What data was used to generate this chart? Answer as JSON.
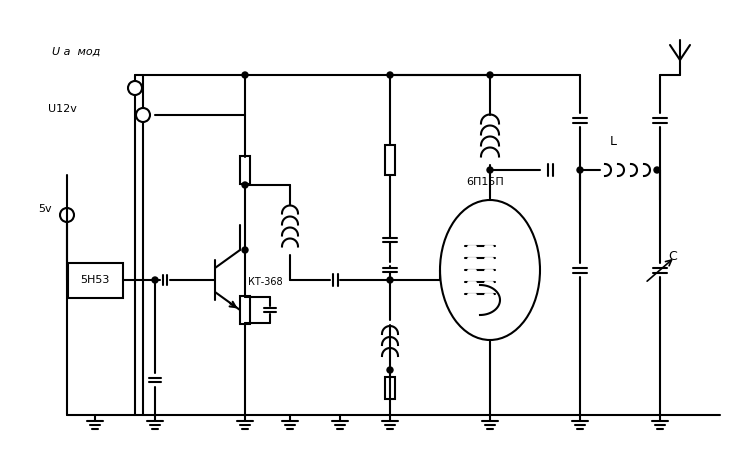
{
  "title": "",
  "background_color": "#ffffff",
  "line_color": "#000000",
  "line_width": 1.5,
  "labels": {
    "ua_mod": "U a  мод",
    "u12v": "U12v",
    "5v": "5v",
    "ic1": "5Н53",
    "transistor": "КТ-368",
    "tube": "6П15П",
    "inductor_L": "L",
    "capacitor_C": "C"
  },
  "fig_width": 7.46,
  "fig_height": 4.63,
  "dpi": 100
}
